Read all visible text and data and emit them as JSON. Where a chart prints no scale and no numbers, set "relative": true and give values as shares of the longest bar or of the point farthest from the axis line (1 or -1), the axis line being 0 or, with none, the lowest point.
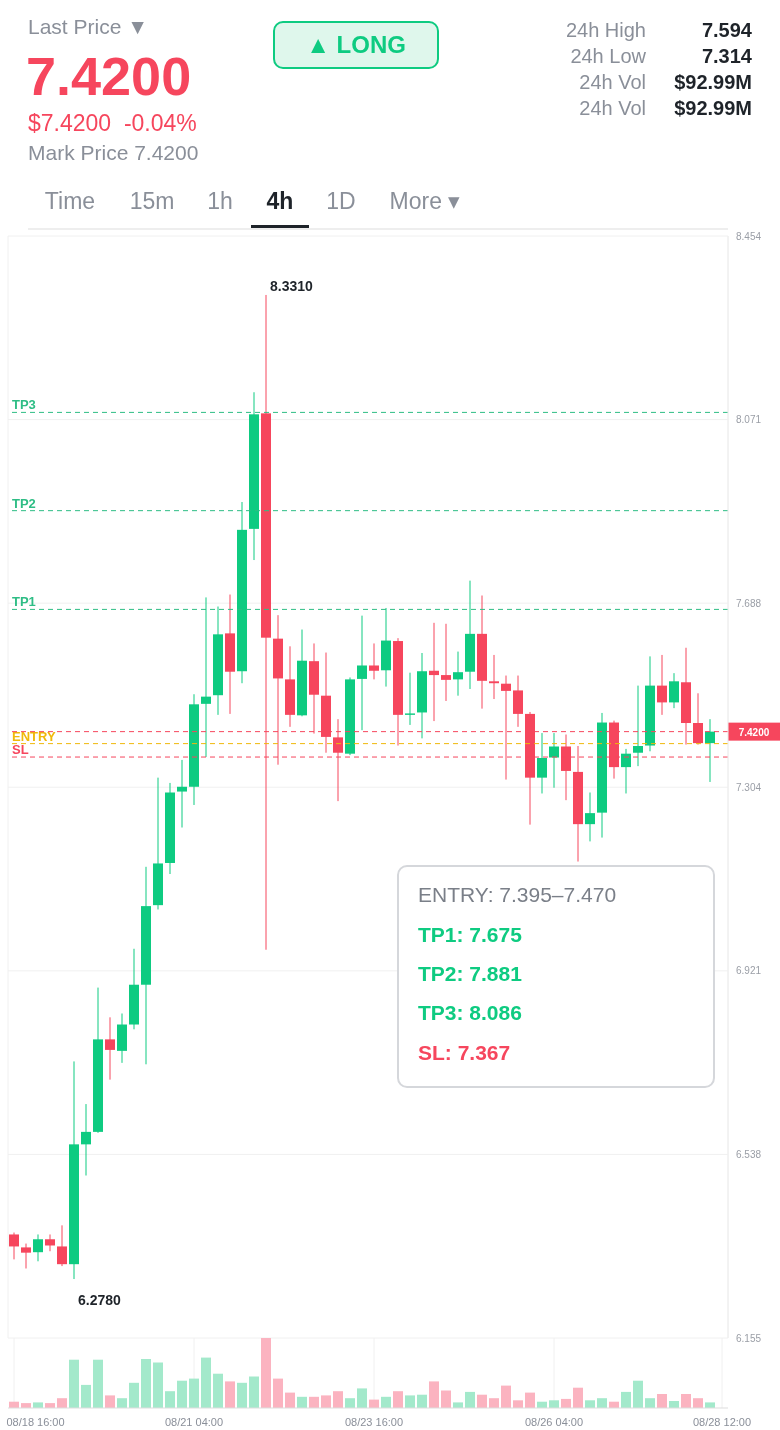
{
  "chart_data": [
    {
      "type": "candlestick",
      "annotations": [
        "Last Price ▼",
        "7.4200",
        "$7.4200  -0.04%",
        "Mark Price 7.4200",
        "▲ LONG",
        "24h High",
        "7.594",
        "24h Low",
        "7.314",
        "24h Vol",
        "$92.99M",
        "24h Vol",
        "$92.99M",
        "Time",
        "15m",
        "1h",
        "4h",
        "1D",
        "More ▾",
        "ENTRY: 7.395–7.470",
        "TP1: 7.675",
        "TP2: 7.881",
        "TP3: 8.086",
        "SL: 7.367",
        {
          "text": "8.3310",
          "x": "--08-22T04:00",
          "y": 8.331
        },
        {
          "text": "6.2780",
          "x": "--08-19T12:00",
          "y": 6.278
        }
      ],
      "x": [
        "--08-18T16:00",
        "--08-18T20:00",
        "--08-19T00:00",
        "--08-19T04:00",
        "--08-19T08:00",
        "--08-19T12:00",
        "--08-19T16:00",
        "--08-19T20:00",
        "--08-20T00:00",
        "--08-20T04:00",
        "--08-20T08:00",
        "--08-20T12:00",
        "--08-20T16:00",
        "--08-20T20:00",
        "--08-21T00:00",
        "--08-21T04:00",
        "--08-21T08:00",
        "--08-21T12:00",
        "--08-21T16:00",
        "--08-21T20:00",
        "--08-22T00:00",
        "--08-22T04:00",
        "--08-22T08:00",
        "--08-22T12:00",
        "--08-22T16:00",
        "--08-22T20:00",
        "--08-23T00:00",
        "--08-23T04:00",
        "--08-23T08:00",
        "--08-23T12:00",
        "--08-23T16:00",
        "--08-23T20:00",
        "--08-24T00:00",
        "--08-24T04:00",
        "--08-24T08:00",
        "--08-24T12:00",
        "--08-24T16:00",
        "--08-24T20:00",
        "--08-25T00:00",
        "--08-25T04:00",
        "--08-25T08:00",
        "--08-25T12:00",
        "--08-25T16:00",
        "--08-25T20:00",
        "--08-26T00:00",
        "--08-26T04:00",
        "--08-26T08:00",
        "--08-26T12:00",
        "--08-26T16:00",
        "--08-26T20:00",
        "--08-27T00:00",
        "--08-27T04:00",
        "--08-27T08:00",
        "--08-27T12:00",
        "--08-27T16:00",
        "--08-27T20:00",
        "--08-28T00:00",
        "--08-28T04:00",
        "--08-28T08:00"
      ],
      "ohlc": [
        [
          6.371,
          6.375,
          6.319,
          6.346
        ],
        [
          6.344,
          6.352,
          6.3,
          6.333
        ],
        [
          6.334,
          6.371,
          6.315,
          6.361
        ],
        [
          6.361,
          6.371,
          6.336,
          6.348
        ],
        [
          6.346,
          6.39,
          6.305,
          6.309
        ],
        [
          6.309,
          6.732,
          6.278,
          6.559
        ],
        [
          6.559,
          6.643,
          6.494,
          6.585
        ],
        [
          6.585,
          6.886,
          6.583,
          6.778
        ],
        [
          6.778,
          6.824,
          6.694,
          6.756
        ],
        [
          6.754,
          6.832,
          6.729,
          6.809
        ],
        [
          6.809,
          6.967,
          6.799,
          6.892
        ],
        [
          6.892,
          7.138,
          6.726,
          7.056
        ],
        [
          7.058,
          7.324,
          7.049,
          7.145
        ],
        [
          7.146,
          7.313,
          7.123,
          7.293
        ],
        [
          7.295,
          7.361,
          7.22,
          7.305
        ],
        [
          7.305,
          7.498,
          7.267,
          7.477
        ],
        [
          7.478,
          7.7,
          7.367,
          7.493
        ],
        [
          7.496,
          7.681,
          7.455,
          7.623
        ],
        [
          7.625,
          7.706,
          7.457,
          7.545
        ],
        [
          7.546,
          7.899,
          7.521,
          7.841
        ],
        [
          7.843,
          8.128,
          7.778,
          8.082
        ],
        [
          8.084,
          8.331,
          6.965,
          7.616
        ],
        [
          7.614,
          7.663,
          7.351,
          7.531
        ],
        [
          7.529,
          7.598,
          7.43,
          7.455
        ],
        [
          7.454,
          7.633,
          7.452,
          7.568
        ],
        [
          7.567,
          7.604,
          7.416,
          7.497
        ],
        [
          7.495,
          7.585,
          7.376,
          7.409
        ],
        [
          7.408,
          7.446,
          7.275,
          7.376
        ],
        [
          7.374,
          7.533,
          7.371,
          7.529
        ],
        [
          7.53,
          7.662,
          7.423,
          7.558
        ],
        [
          7.558,
          7.604,
          7.529,
          7.547
        ],
        [
          7.548,
          7.678,
          7.514,
          7.61
        ],
        [
          7.609,
          7.615,
          7.391,
          7.455
        ],
        [
          7.455,
          7.543,
          7.434,
          7.458
        ],
        [
          7.46,
          7.584,
          7.406,
          7.546
        ],
        [
          7.547,
          7.647,
          7.442,
          7.538
        ],
        [
          7.538,
          7.645,
          7.484,
          7.528
        ],
        [
          7.529,
          7.587,
          7.495,
          7.544
        ],
        [
          7.545,
          7.735,
          7.509,
          7.624
        ],
        [
          7.624,
          7.704,
          7.468,
          7.526
        ],
        [
          7.525,
          7.58,
          7.488,
          7.521
        ],
        [
          7.52,
          7.537,
          7.32,
          7.505
        ],
        [
          7.506,
          7.537,
          7.43,
          7.457
        ],
        [
          7.457,
          7.461,
          7.226,
          7.324
        ],
        [
          7.324,
          7.417,
          7.291,
          7.365
        ],
        [
          7.366,
          7.417,
          7.303,
          7.389
        ],
        [
          7.389,
          7.414,
          7.277,
          7.338
        ],
        [
          7.336,
          7.39,
          7.149,
          7.227
        ],
        [
          7.227,
          7.293,
          7.191,
          7.25
        ],
        [
          7.251,
          7.459,
          7.199,
          7.439
        ],
        [
          7.439,
          7.443,
          7.322,
          7.346
        ],
        [
          7.346,
          7.384,
          7.291,
          7.374
        ],
        [
          7.376,
          7.516,
          7.348,
          7.39
        ],
        [
          7.391,
          7.577,
          7.379,
          7.516
        ],
        [
          7.516,
          7.58,
          7.455,
          7.481
        ],
        [
          7.481,
          7.542,
          7.469,
          7.525
        ],
        [
          7.523,
          7.595,
          7.393,
          7.438
        ],
        [
          7.438,
          7.5,
          7.393,
          7.396
        ],
        [
          7.396,
          7.446,
          7.315,
          7.42
        ]
      ],
      "colors": [
        "#f6465d",
        "#f6465d",
        "#0ecb81",
        "#f6465d",
        "#f6465d",
        "#0ecb81",
        "#0ecb81",
        "#0ecb81",
        "#f6465d",
        "#0ecb81",
        "#0ecb81",
        "#0ecb81",
        "#0ecb81",
        "#0ecb81",
        "#0ecb81",
        "#0ecb81",
        "#0ecb81",
        "#0ecb81",
        "#f6465d",
        "#0ecb81",
        "#0ecb81",
        "#f6465d",
        "#f6465d",
        "#f6465d",
        "#0ecb81",
        "#f6465d",
        "#f6465d",
        "#f6465d",
        "#0ecb81",
        "#0ecb81",
        "#f6465d",
        "#0ecb81",
        "#f6465d",
        "#0ecb81",
        "#0ecb81",
        "#f6465d",
        "#f6465d",
        "#0ecb81",
        "#0ecb81",
        "#f6465d",
        "#f6465d",
        "#f6465d",
        "#f6465d",
        "#f6465d",
        "#0ecb81",
        "#0ecb81",
        "#f6465d",
        "#f6465d",
        "#0ecb81",
        "#0ecb81",
        "#f6465d",
        "#0ecb81",
        "#0ecb81",
        "#0ecb81",
        "#f6465d",
        "#0ecb81",
        "#f6465d",
        "#f6465d",
        "#0ecb81"
      ],
      "xlim": [
        "--08-18T14:00",
        "--08-28T14:00"
      ],
      "ylim": [
        6.155,
        8.454
      ],
      "yticks": [
        6.155,
        6.538,
        6.921,
        7.304,
        7.688,
        8.071,
        8.454
      ],
      "tick_labels": "y",
      "grid": true,
      "ref_lines": [
        {
          "axis": "y",
          "value": 8.086,
          "label": "TP3",
          "color": "#2ebd85",
          "line_style": "dashed"
        },
        {
          "axis": "y",
          "value": 7.881,
          "label": "TP2",
          "color": "#2ebd85",
          "line_style": "dashed"
        },
        {
          "axis": "y",
          "value": 7.675,
          "label": "TP1",
          "color": "#2ebd85",
          "line_style": "dashed"
        },
        {
          "axis": "y",
          "value": 7.395,
          "label": "ENTRY",
          "color": "#f0b90b",
          "line_style": "dashed"
        },
        {
          "axis": "y",
          "value": 7.367,
          "label": "SL",
          "color": "#f6465d",
          "line_style": "dashed"
        },
        {
          "axis": "y",
          "value": 7.42,
          "label": "7.4200",
          "color": "#f6465d",
          "line_style": "dashed"
        }
      ]
    },
    {
      "type": "bar",
      "relative": true,
      "x": [
        "--08-18T16:00",
        "--08-18T20:00",
        "--08-19T00:00",
        "--08-19T04:00",
        "--08-19T08:00",
        "--08-19T12:00",
        "--08-19T16:00",
        "--08-19T20:00",
        "--08-20T00:00",
        "--08-20T04:00",
        "--08-20T08:00",
        "--08-20T12:00",
        "--08-20T16:00",
        "--08-20T20:00",
        "--08-21T00:00",
        "--08-21T04:00",
        "--08-21T08:00",
        "--08-21T12:00",
        "--08-21T16:00",
        "--08-21T20:00",
        "--08-22T00:00",
        "--08-22T04:00",
        "--08-22T08:00",
        "--08-22T12:00",
        "--08-22T16:00",
        "--08-22T20:00",
        "--08-23T00:00",
        "--08-23T04:00",
        "--08-23T08:00",
        "--08-23T12:00",
        "--08-23T16:00",
        "--08-23T20:00",
        "--08-24T00:00",
        "--08-24T04:00",
        "--08-24T08:00",
        "--08-24T12:00",
        "--08-24T16:00",
        "--08-24T20:00",
        "--08-25T00:00",
        "--08-25T04:00",
        "--08-25T08:00",
        "--08-25T12:00",
        "--08-25T16:00",
        "--08-25T20:00",
        "--08-26T00:00",
        "--08-26T04:00",
        "--08-26T08:00",
        "--08-26T12:00",
        "--08-26T16:00",
        "--08-26T20:00",
        "--08-27T00:00",
        "--08-27T04:00",
        "--08-27T08:00",
        "--08-27T12:00",
        "--08-27T16:00",
        "--08-27T20:00",
        "--08-28T00:00",
        "--08-28T04:00",
        "--08-28T08:00"
      ],
      "values": [
        0.09,
        0.07,
        0.08,
        0.07,
        0.14,
        0.69,
        0.33,
        0.69,
        0.18,
        0.14,
        0.36,
        0.7,
        0.65,
        0.24,
        0.39,
        0.42,
        0.72,
        0.49,
        0.38,
        0.36,
        0.45,
        1,
        0.42,
        0.22,
        0.16,
        0.16,
        0.18,
        0.24,
        0.14,
        0.28,
        0.12,
        0.16,
        0.24,
        0.18,
        0.19,
        0.38,
        0.25,
        0.08,
        0.23,
        0.19,
        0.14,
        0.32,
        0.11,
        0.22,
        0.09,
        0.11,
        0.13,
        0.29,
        0.11,
        0.14,
        0.09,
        0.23,
        0.39,
        0.14,
        0.2,
        0.1,
        0.2,
        0.14,
        0.08
      ],
      "colors": [
        "#fbb3c0",
        "#fbb3c0",
        "#a3e9cb",
        "#fbb3c0",
        "#fbb3c0",
        "#a3e9cb",
        "#a3e9cb",
        "#a3e9cb",
        "#fbb3c0",
        "#a3e9cb",
        "#a3e9cb",
        "#a3e9cb",
        "#a3e9cb",
        "#a3e9cb",
        "#a3e9cb",
        "#a3e9cb",
        "#a3e9cb",
        "#a3e9cb",
        "#fbb3c0",
        "#a3e9cb",
        "#a3e9cb",
        "#fbb3c0",
        "#fbb3c0",
        "#fbb3c0",
        "#a3e9cb",
        "#fbb3c0",
        "#fbb3c0",
        "#fbb3c0",
        "#a3e9cb",
        "#a3e9cb",
        "#fbb3c0",
        "#a3e9cb",
        "#fbb3c0",
        "#a3e9cb",
        "#a3e9cb",
        "#fbb3c0",
        "#fbb3c0",
        "#a3e9cb",
        "#a3e9cb",
        "#fbb3c0",
        "#fbb3c0",
        "#fbb3c0",
        "#fbb3c0",
        "#fbb3c0",
        "#a3e9cb",
        "#a3e9cb",
        "#fbb3c0",
        "#fbb3c0",
        "#a3e9cb",
        "#a3e9cb",
        "#fbb3c0",
        "#a3e9cb",
        "#a3e9cb",
        "#a3e9cb",
        "#fbb3c0",
        "#a3e9cb",
        "#fbb3c0",
        "#fbb3c0",
        "#a3e9cb"
      ],
      "xlim": [
        "--08-18T14:00",
        "--08-28T14:00"
      ],
      "xticks": [
        {
          "value": "--08-18T16:00",
          "label": "08/18 16:00"
        },
        {
          "value": "--08-21T04:00",
          "label": "08/21 04:00"
        },
        {
          "value": "--08-23T16:00",
          "label": "08/23 16:00"
        },
        {
          "value": "--08-26T04:00",
          "label": "08/26 04:00"
        },
        {
          "value": "--08-28T12:00",
          "label": "08/28 12:00"
        }
      ],
      "tick_labels": "x",
      "grid": "x"
    }
  ]
}
